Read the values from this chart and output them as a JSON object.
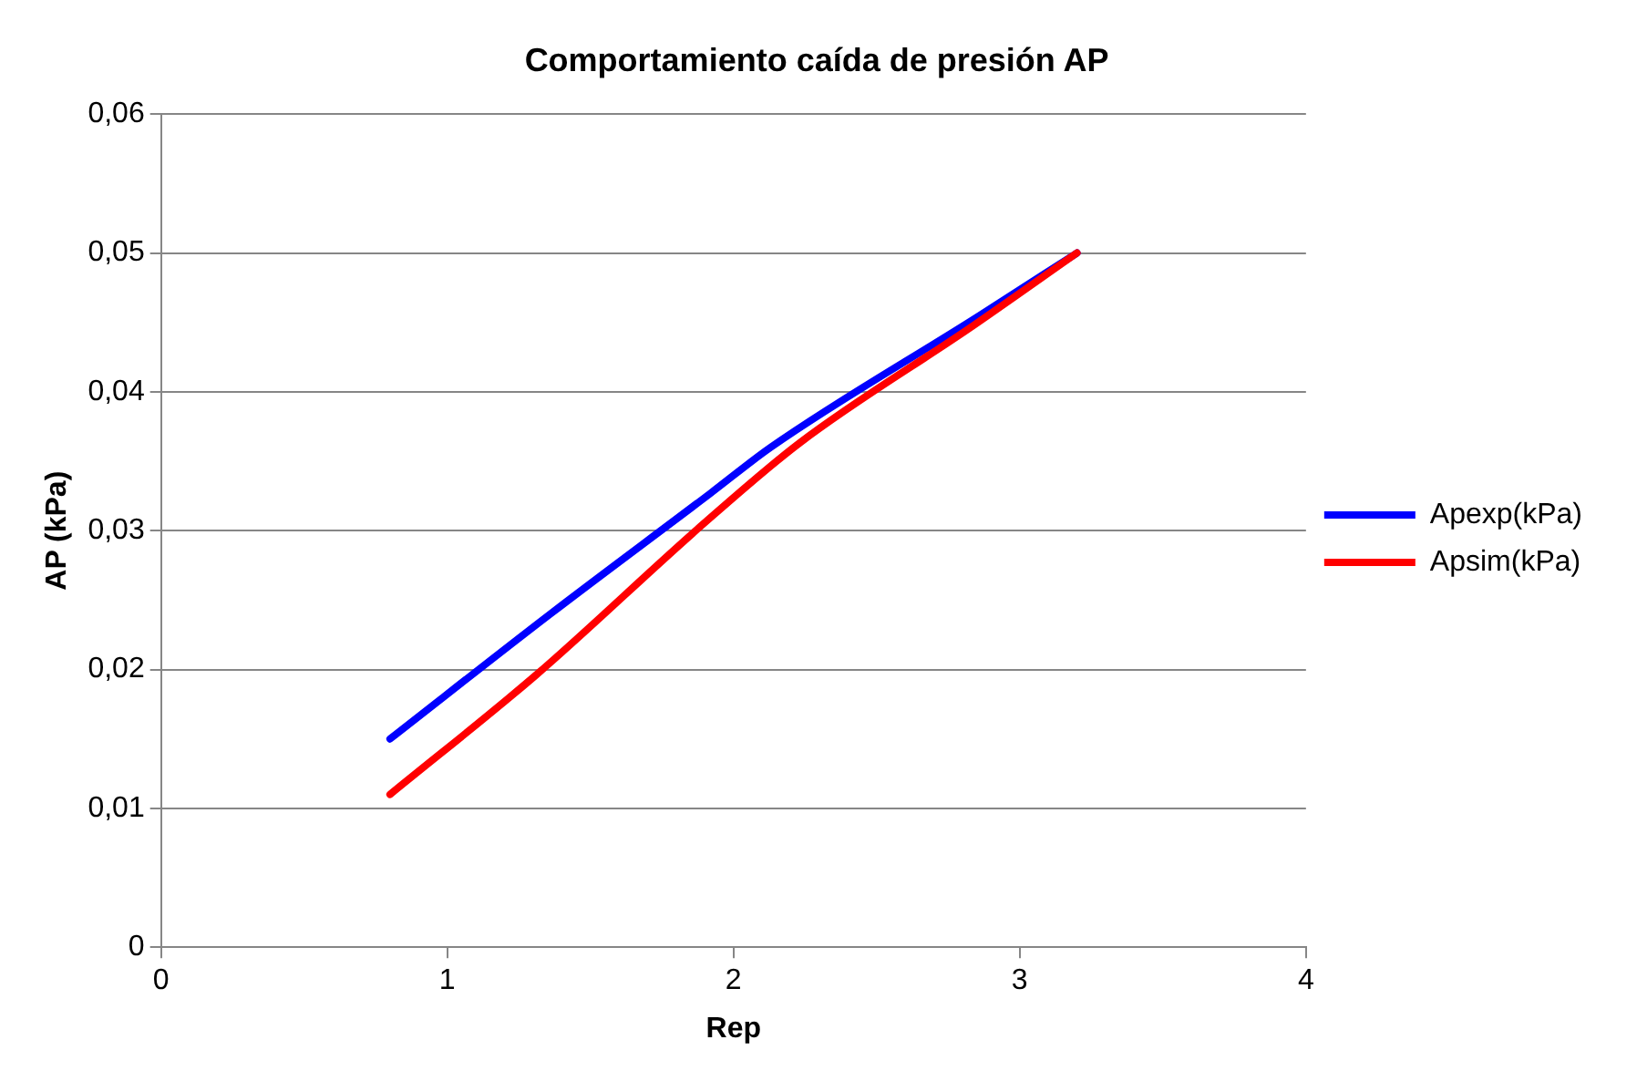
{
  "chart_data": {
    "type": "line",
    "title": "Comportamiento caída de presión AP",
    "xlabel": "Rep",
    "ylabel": "AP (kPa)",
    "xlim": [
      0,
      4
    ],
    "xticks": [
      0,
      1,
      2,
      3,
      4
    ],
    "ylim": [
      0,
      0.06
    ],
    "yticks": [
      {
        "value": 0,
        "label": "0"
      },
      {
        "value": 0.01,
        "label": "0,01"
      },
      {
        "value": 0.02,
        "label": "0,02"
      },
      {
        "value": 0.03,
        "label": "0,03"
      },
      {
        "value": 0.04,
        "label": "0,04"
      },
      {
        "value": 0.05,
        "label": "0,05"
      },
      {
        "value": 0.06,
        "label": "0,06"
      }
    ],
    "grid": "y",
    "legend": "right",
    "marker": "none",
    "line_style": "solid",
    "series": [
      {
        "name": "Apexp(kPa)",
        "color": "#0000ff",
        "x": [
          0.8,
          1.36,
          1.92,
          2.13,
          2.86,
          3.2
        ],
        "values": [
          0.015,
          0.024,
          0.0327,
          0.036,
          0.0455,
          0.05
        ]
      },
      {
        "name": "Apsim(kPa)",
        "color": "#ff0000",
        "x": [
          0.8,
          1.31,
          1.89,
          2.23,
          2.84,
          3.2
        ],
        "values": [
          0.011,
          0.0196,
          0.0304,
          0.0363,
          0.0448,
          0.05
        ]
      }
    ]
  }
}
